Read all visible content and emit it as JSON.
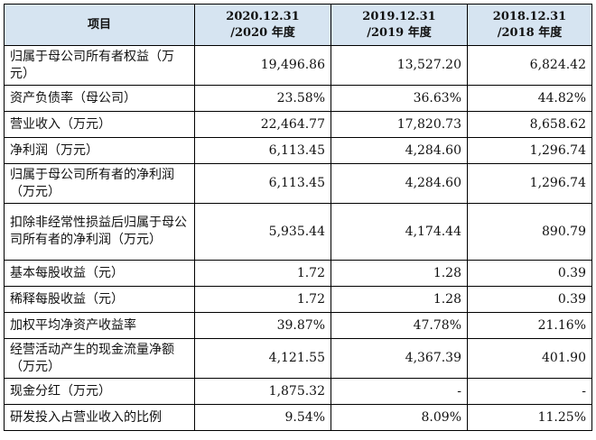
{
  "header": {
    "item": "项目",
    "col1_line1": "2020.12.31",
    "col1_line2": "/2020 年度",
    "col2_line1": "2019.12.31",
    "col2_line2": "/2019 年度",
    "col3_line1": "2018.12.31",
    "col3_line2": "/2018 年度"
  },
  "rows": [
    {
      "label": "归属于母公司所有者权益（万元）",
      "v2020": "19,496.86",
      "v2019": "13,527.20",
      "v2018": "6,824.42"
    },
    {
      "label": "资产负债率（母公司）",
      "v2020": "23.58%",
      "v2019": "36.63%",
      "v2018": "44.82%"
    },
    {
      "label": "营业收入（万元）",
      "v2020": "22,464.77",
      "v2019": "17,820.73",
      "v2018": "8,658.62"
    },
    {
      "label": "净利润（万元）",
      "v2020": "6,113.45",
      "v2019": "4,284.60",
      "v2018": "1,296.74"
    },
    {
      "label": "归属于母公司所有者的净利润（万元）",
      "v2020": "6,113.45",
      "v2019": "4,284.60",
      "v2018": "1,296.74"
    },
    {
      "label": "扣除非经常性损益后归属于母公司所有者的净利润（万元）",
      "v2020": "5,935.44",
      "v2019": "4,174.44",
      "v2018": "890.79"
    },
    {
      "label": "基本每股收益（元）",
      "v2020": "1.72",
      "v2019": "1.28",
      "v2018": "0.39"
    },
    {
      "label": "稀释每股收益（元）",
      "v2020": "1.72",
      "v2019": "1.28",
      "v2018": "0.39"
    },
    {
      "label": "加权平均净资产收益率",
      "v2020": "39.87%",
      "v2019": "47.78%",
      "v2018": "21.16%"
    },
    {
      "label": "经营活动产生的现金流量净额（万元）",
      "v2020": "4,121.55",
      "v2019": "4,367.39",
      "v2018": "401.90"
    },
    {
      "label": "现金分红（万元）",
      "v2020": "1,875.32",
      "v2019": "-",
      "v2018": "-"
    },
    {
      "label": "研发投入占营业收入的比例",
      "v2020": "9.54%",
      "v2019": "8.09%",
      "v2018": "11.25%"
    }
  ]
}
